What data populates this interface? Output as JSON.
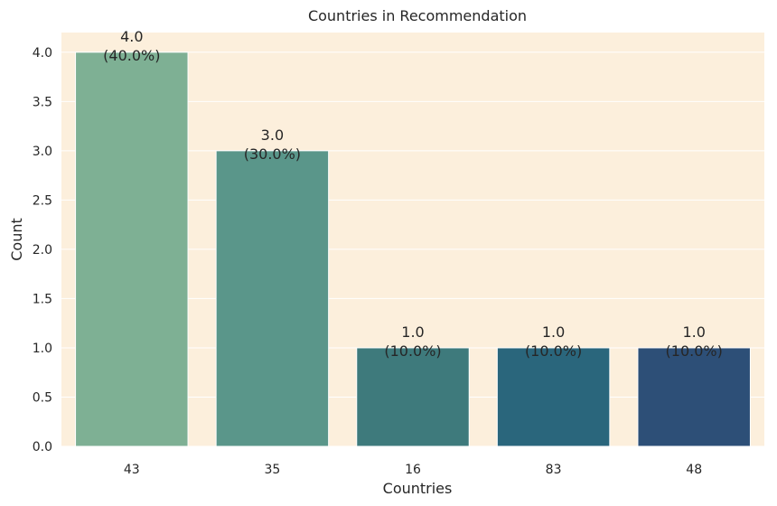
{
  "chart_data": {
    "type": "bar",
    "title": "Countries in Recommendation",
    "xlabel": "Countries",
    "ylabel": "Count",
    "categories": [
      "43",
      "35",
      "16",
      "83",
      "48"
    ],
    "values": [
      4.0,
      3.0,
      1.0,
      1.0,
      1.0
    ],
    "bar_labels": [
      [
        "4.0",
        "(40.0%)"
      ],
      [
        "3.0",
        "(30.0%)"
      ],
      [
        "1.0",
        "(10.0%)"
      ],
      [
        "1.0",
        "(10.0%)"
      ],
      [
        "1.0",
        "(10.0%)"
      ]
    ],
    "ylim": [
      0,
      4.2
    ],
    "yticks": [
      "0.0",
      "0.5",
      "1.0",
      "1.5",
      "2.0",
      "2.5",
      "3.0",
      "3.5",
      "4.0"
    ],
    "colors": [
      "#7eb094",
      "#5a968a",
      "#3e7a7c",
      "#2a667c",
      "#2d4f77"
    ],
    "background": "#fcefdc",
    "grid": true,
    "legend": false
  }
}
